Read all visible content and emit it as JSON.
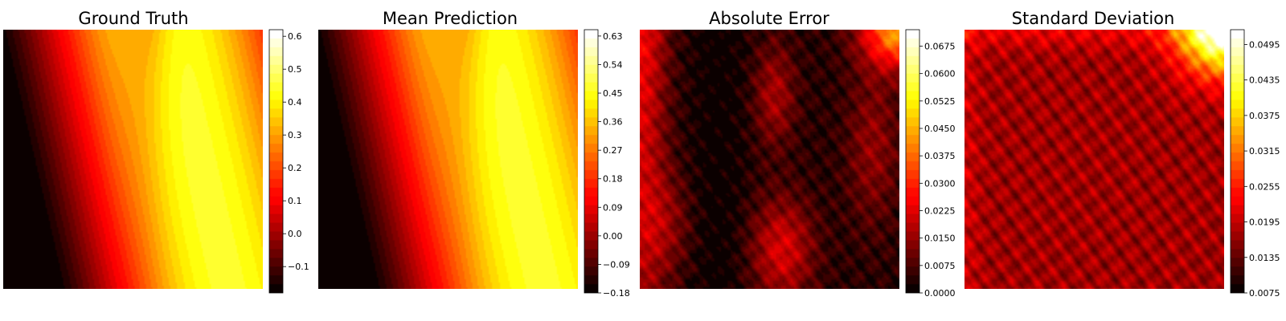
{
  "chart_data": [
    {
      "type": "heatmap",
      "title": "Ground Truth",
      "colormap": "hot",
      "colorbar": {
        "min": -0.18,
        "max": 0.62,
        "tick_values": [
          -0.1,
          0.0,
          0.1,
          0.2,
          0.3,
          0.4,
          0.5,
          0.6
        ],
        "tick_labels": [
          "−0.1",
          "0.0",
          "0.1",
          "0.2",
          "0.3",
          "0.4",
          "0.5",
          "0.6"
        ]
      },
      "field": "wave",
      "noise": 0
    },
    {
      "type": "heatmap",
      "title": "Mean Prediction",
      "colormap": "hot",
      "colorbar": {
        "min": -0.18,
        "max": 0.65,
        "tick_values": [
          -0.18,
          -0.09,
          0.0,
          0.09,
          0.18,
          0.27,
          0.36,
          0.45,
          0.54,
          0.63
        ],
        "tick_labels": [
          "−0.18",
          "−0.09",
          "0.00",
          "0.09",
          "0.18",
          "0.27",
          "0.36",
          "0.45",
          "0.54",
          "0.63"
        ]
      },
      "field": "wave",
      "noise": 0
    },
    {
      "type": "heatmap",
      "title": "Absolute Error",
      "colormap": "hot",
      "colorbar": {
        "min": 0.0,
        "max": 0.072,
        "tick_values": [
          0.0,
          0.0075,
          0.015,
          0.0225,
          0.03,
          0.0375,
          0.045,
          0.0525,
          0.06,
          0.0675
        ],
        "tick_labels": [
          "0.0000",
          "0.0075",
          "0.0150",
          "0.0225",
          "0.0300",
          "0.0375",
          "0.0450",
          "0.0525",
          "0.0600",
          "0.0675"
        ]
      },
      "field": "error",
      "noise": 0.05
    },
    {
      "type": "heatmap",
      "title": "Standard Deviation",
      "colormap": "hot",
      "colorbar": {
        "min": 0.0075,
        "max": 0.052,
        "tick_values": [
          0.0075,
          0.0135,
          0.0195,
          0.0255,
          0.0315,
          0.0375,
          0.0435,
          0.0495
        ],
        "tick_labels": [
          "0.0075",
          "0.0135",
          "0.0195",
          "0.0255",
          "0.0315",
          "0.0375",
          "0.0435",
          "0.0495"
        ]
      },
      "field": "std",
      "noise": 0.07
    }
  ]
}
